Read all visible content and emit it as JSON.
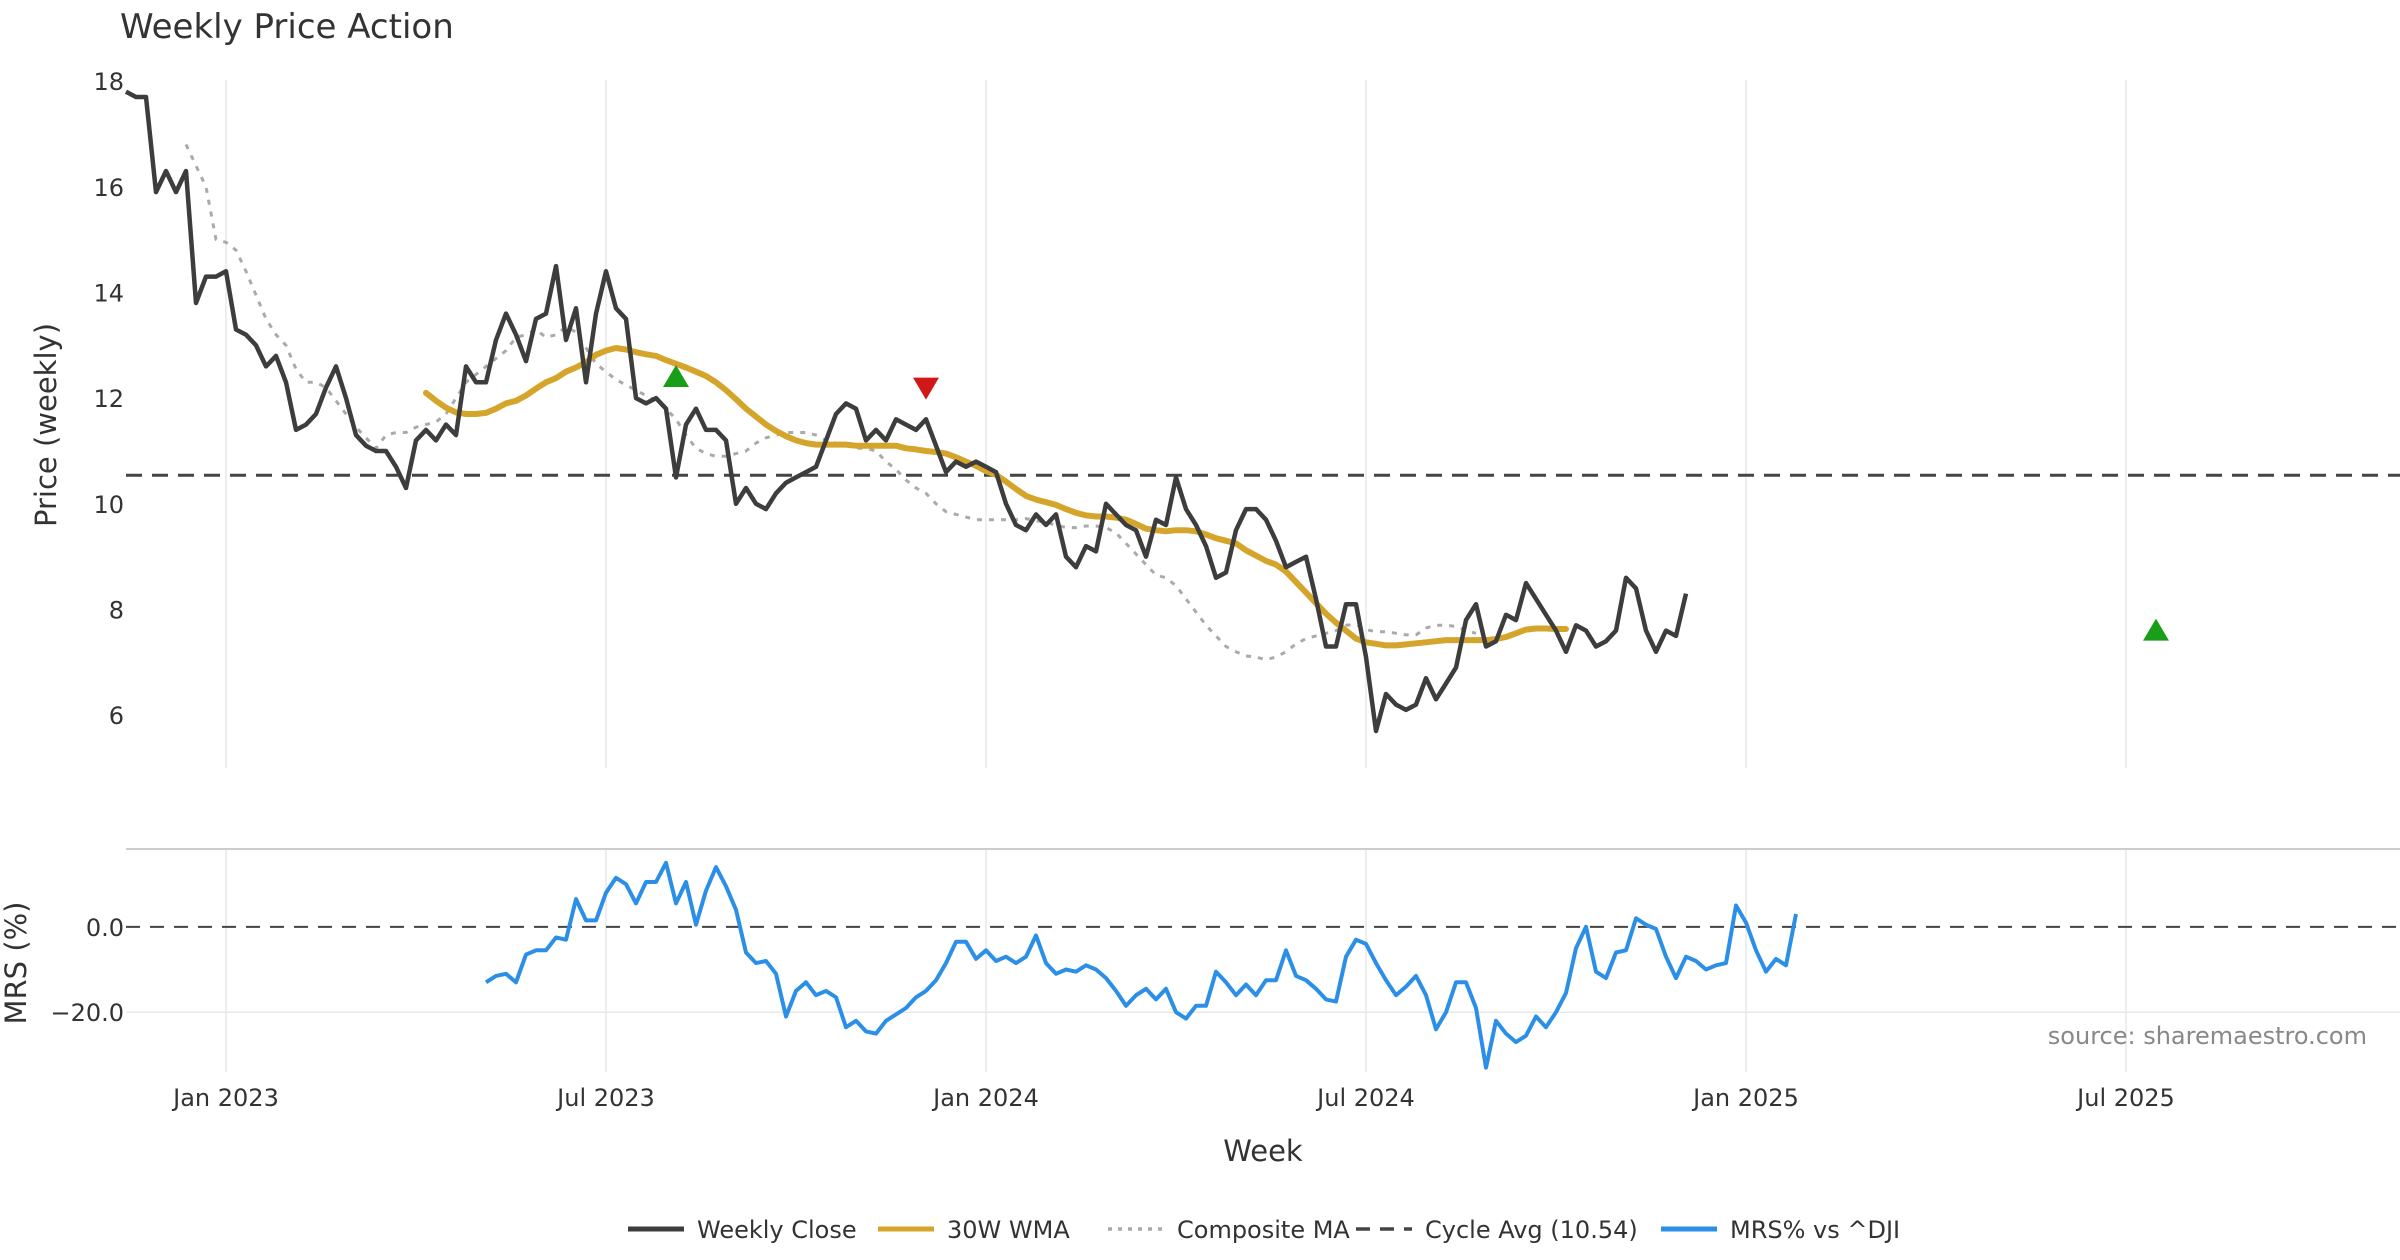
{
  "chart_data": {
    "type": "line",
    "title": "Weekly Price Action",
    "source": "source: sharemaestro.com",
    "xlabel": "Week",
    "colors": {
      "close": "#3d3d3d",
      "wma": "#d4a52a",
      "composite": "#aaaaaa",
      "cycle": "#444444",
      "mrs": "#2b8fe8",
      "buy": "#1a9e1a",
      "sell": "#d01818",
      "grid": "#e8e8e8"
    },
    "x_ticks": [
      "Jan 2023",
      "Jul 2023",
      "Jan 2024",
      "Jul 2024",
      "Jan 2025",
      "Jul 2025"
    ],
    "x_tick_weeks": [
      10,
      48,
      86,
      124,
      162,
      200
    ],
    "price_panel": {
      "ylabel": "Price (weekly)",
      "ylim": [
        5.0,
        18.4
      ],
      "yticks": [
        6,
        8,
        10,
        12,
        14,
        16,
        18
      ],
      "cycle_avg": 10.54,
      "series": [
        {
          "name": "Weekly Close",
          "start_week": 0,
          "values": [
            17.8,
            17.7,
            17.7,
            15.9,
            16.3,
            15.9,
            16.3,
            13.8,
            14.3,
            14.3,
            14.4,
            13.3,
            13.2,
            13.0,
            12.6,
            12.8,
            12.3,
            11.4,
            11.5,
            11.7,
            12.2,
            12.6,
            12.0,
            11.3,
            11.1,
            11.0,
            11.0,
            10.7,
            10.3,
            11.2,
            11.4,
            11.2,
            11.5,
            11.3,
            12.6,
            12.3,
            12.3,
            13.1,
            13.6,
            13.2,
            12.7,
            13.5,
            13.6,
            14.5,
            13.1,
            13.7,
            12.3,
            13.6,
            14.4,
            13.7,
            13.5,
            12.0,
            11.9,
            12.0,
            11.8,
            10.5,
            11.5,
            11.8,
            11.4,
            11.4,
            11.2,
            10.0,
            10.3,
            10.0,
            9.9,
            10.2,
            10.4,
            10.5,
            10.6,
            10.7,
            11.2,
            11.7,
            11.9,
            11.8,
            11.2,
            11.4,
            11.2,
            11.6,
            11.5,
            11.4,
            11.6,
            11.1,
            10.6,
            10.8,
            10.7,
            10.8,
            10.7,
            10.6,
            10.0,
            9.6,
            9.5,
            9.8,
            9.6,
            9.8,
            9.0,
            8.8,
            9.2,
            9.1,
            10.0,
            9.8,
            9.6,
            9.5,
            9.0,
            9.7,
            9.6,
            10.5,
            9.9,
            9.6,
            9.2,
            8.6,
            8.7,
            9.5,
            9.9,
            9.9,
            9.7,
            9.3,
            8.8,
            8.9,
            9.0,
            8.2,
            7.3,
            7.3,
            8.1,
            8.1,
            7.1,
            5.7,
            6.4,
            6.2,
            6.1,
            6.2,
            6.7,
            6.3,
            6.6,
            6.9,
            7.8,
            8.1,
            7.3,
            7.4,
            7.9,
            7.8,
            8.5,
            8.2,
            7.9,
            7.6,
            7.2,
            7.7,
            7.6,
            7.3,
            7.4,
            7.6,
            8.6,
            8.4,
            7.6,
            7.2,
            7.6,
            7.5,
            8.3
          ]
        },
        {
          "name": "30W WMA",
          "start_week": 30,
          "values": [
            12.1,
            11.95,
            11.82,
            11.73,
            11.7,
            11.7,
            11.72,
            11.8,
            11.9,
            11.95,
            12.05,
            12.18,
            12.3,
            12.38,
            12.5,
            12.58,
            12.68,
            12.82,
            12.9,
            12.95,
            12.92,
            12.87,
            12.83,
            12.8,
            12.72,
            12.65,
            12.58,
            12.5,
            12.42,
            12.3,
            12.15,
            11.98,
            11.8,
            11.65,
            11.5,
            11.38,
            11.28,
            11.2,
            11.15,
            11.12,
            11.12,
            11.12,
            11.12,
            11.1,
            11.1,
            11.1,
            11.1,
            11.1,
            11.05,
            11.03,
            11.0,
            10.98,
            10.95,
            10.88,
            10.8,
            10.72,
            10.62,
            10.55,
            10.42,
            10.28,
            10.15,
            10.08,
            10.03,
            9.98,
            9.9,
            9.83,
            9.78,
            9.76,
            9.76,
            9.74,
            9.7,
            9.62,
            9.53,
            9.5,
            9.48,
            9.5,
            9.5,
            9.48,
            9.42,
            9.35,
            9.3,
            9.25,
            9.12,
            9.02,
            8.92,
            8.85,
            8.72,
            8.52,
            8.32,
            8.12,
            7.92,
            7.75,
            7.6,
            7.45,
            7.38,
            7.35,
            7.32,
            7.32,
            7.34,
            7.36,
            7.38,
            7.4,
            7.42,
            7.42,
            7.42,
            7.42,
            7.42,
            7.44,
            7.48,
            7.55,
            7.62,
            7.64,
            7.64,
            7.63,
            7.63
          ]
        },
        {
          "name": "Composite MA",
          "start_week": 6,
          "values": [
            16.8,
            16.4,
            16.0,
            15.0,
            14.95,
            14.8,
            14.4,
            13.95,
            13.5,
            13.2,
            13.0,
            12.55,
            12.3,
            12.3,
            12.2,
            11.95,
            11.7,
            11.45,
            11.25,
            11.05,
            11.3,
            11.35,
            11.35,
            11.45,
            11.5,
            11.55,
            11.7,
            12.0,
            12.3,
            12.45,
            12.6,
            12.75,
            12.9,
            13.15,
            13.2,
            13.3,
            13.15,
            13.2,
            13.35,
            13.25,
            12.95,
            12.65,
            12.5,
            12.35,
            12.25,
            12.15,
            12.05,
            11.95,
            11.8,
            11.6,
            11.3,
            11.05,
            10.95,
            10.9,
            10.9,
            10.95,
            11.0,
            11.15,
            11.25,
            11.3,
            11.35,
            11.35,
            11.35,
            11.3,
            11.2,
            11.15,
            11.1,
            11.05,
            11.05,
            11.0,
            10.8,
            10.65,
            10.45,
            10.3,
            10.2,
            10.0,
            9.85,
            9.8,
            9.75,
            9.7,
            9.7,
            9.7,
            9.7,
            9.7,
            9.72,
            9.68,
            9.65,
            9.6,
            9.55,
            9.55,
            9.58,
            9.58,
            9.55,
            9.45,
            9.25,
            9.05,
            8.85,
            8.65,
            8.6,
            8.45,
            8.2,
            7.95,
            7.7,
            7.5,
            7.3,
            7.2,
            7.12,
            7.1,
            7.05,
            7.1,
            7.2,
            7.35,
            7.45,
            7.5,
            7.55,
            7.6,
            7.7,
            7.72,
            7.62,
            7.58,
            7.58,
            7.55,
            7.52,
            7.52,
            7.65,
            7.7,
            7.7,
            7.68,
            7.6,
            7.55
          ]
        }
      ],
      "markers": [
        {
          "type": "buy",
          "week": 55,
          "price": 12.4
        },
        {
          "type": "sell",
          "week": 80,
          "price": 12.2
        },
        {
          "type": "buy",
          "week": 203,
          "price": 7.6
        }
      ]
    },
    "mrs_panel": {
      "ylabel": "MRS (%)",
      "ylim": [
        -34,
        18
      ],
      "yticks": [
        0.0,
        -20.0
      ],
      "ytick_labels": [
        "0.0",
        "−20.0"
      ],
      "reference": 0.0,
      "series": [
        {
          "name": "MRS% vs ^DJI",
          "start_week": 36,
          "values": [
            -13.0,
            -11.5,
            -11.0,
            -13.0,
            -6.5,
            -5.5,
            -5.5,
            -2.5,
            -3.0,
            6.5,
            1.5,
            1.5,
            8.0,
            11.5,
            10.0,
            5.5,
            10.5,
            10.5,
            15.0,
            5.5,
            10.5,
            0.5,
            8.5,
            14.0,
            9.5,
            4.0,
            -6.0,
            -8.5,
            -8.0,
            -11.0,
            -21.0,
            -15.0,
            -13.0,
            -16.0,
            -15.0,
            -16.5,
            -23.5,
            -22.0,
            -24.5,
            -25.0,
            -22.0,
            -20.5,
            -19.0,
            -16.5,
            -15.0,
            -12.5,
            -8.5,
            -3.5,
            -3.5,
            -7.5,
            -5.5,
            -8.0,
            -7.0,
            -8.5,
            -7.0,
            -2.0,
            -8.5,
            -11.0,
            -10.0,
            -10.5,
            -9.0,
            -10.0,
            -12.0,
            -15.0,
            -18.5,
            -16.0,
            -14.5,
            -17.0,
            -14.5,
            -20.0,
            -21.5,
            -18.5,
            -18.5,
            -10.5,
            -13.0,
            -16.0,
            -13.5,
            -16.0,
            -12.5,
            -12.5,
            -5.5,
            -11.5,
            -12.5,
            -14.5,
            -17.0,
            -17.5,
            -7.0,
            -3.0,
            -4.0,
            -8.5,
            -12.5,
            -16.0,
            -14.0,
            -11.5,
            -16.0,
            -24.0,
            -20.0,
            -13.0,
            -13.0,
            -19.0,
            -33.0,
            -22.0,
            -25.0,
            -27.0,
            -25.5,
            -21.0,
            -23.5,
            -20.0,
            -15.5,
            -5.0,
            0.0,
            -10.5,
            -12.0,
            -6.0,
            -5.5,
            2.0,
            0.5,
            -0.5,
            -7.0,
            -12.0,
            -7.0,
            -8.0,
            -10.0,
            -9.0,
            -8.5,
            5.0,
            1.0,
            -5.5,
            -10.5,
            -7.5,
            -9.0,
            3.0
          ]
        }
      ]
    },
    "legend": [
      {
        "label": "Weekly Close",
        "style": "solid",
        "color": "#3d3d3d"
      },
      {
        "label": "30W WMA",
        "style": "solid",
        "color": "#d4a52a"
      },
      {
        "label": "Composite MA",
        "style": "dotted",
        "color": "#aaaaaa"
      },
      {
        "label": "Cycle Avg (10.54)",
        "style": "dashed",
        "color": "#444444"
      },
      {
        "label": "MRS% vs ^DJI",
        "style": "solid",
        "color": "#2b8fe8"
      }
    ]
  }
}
